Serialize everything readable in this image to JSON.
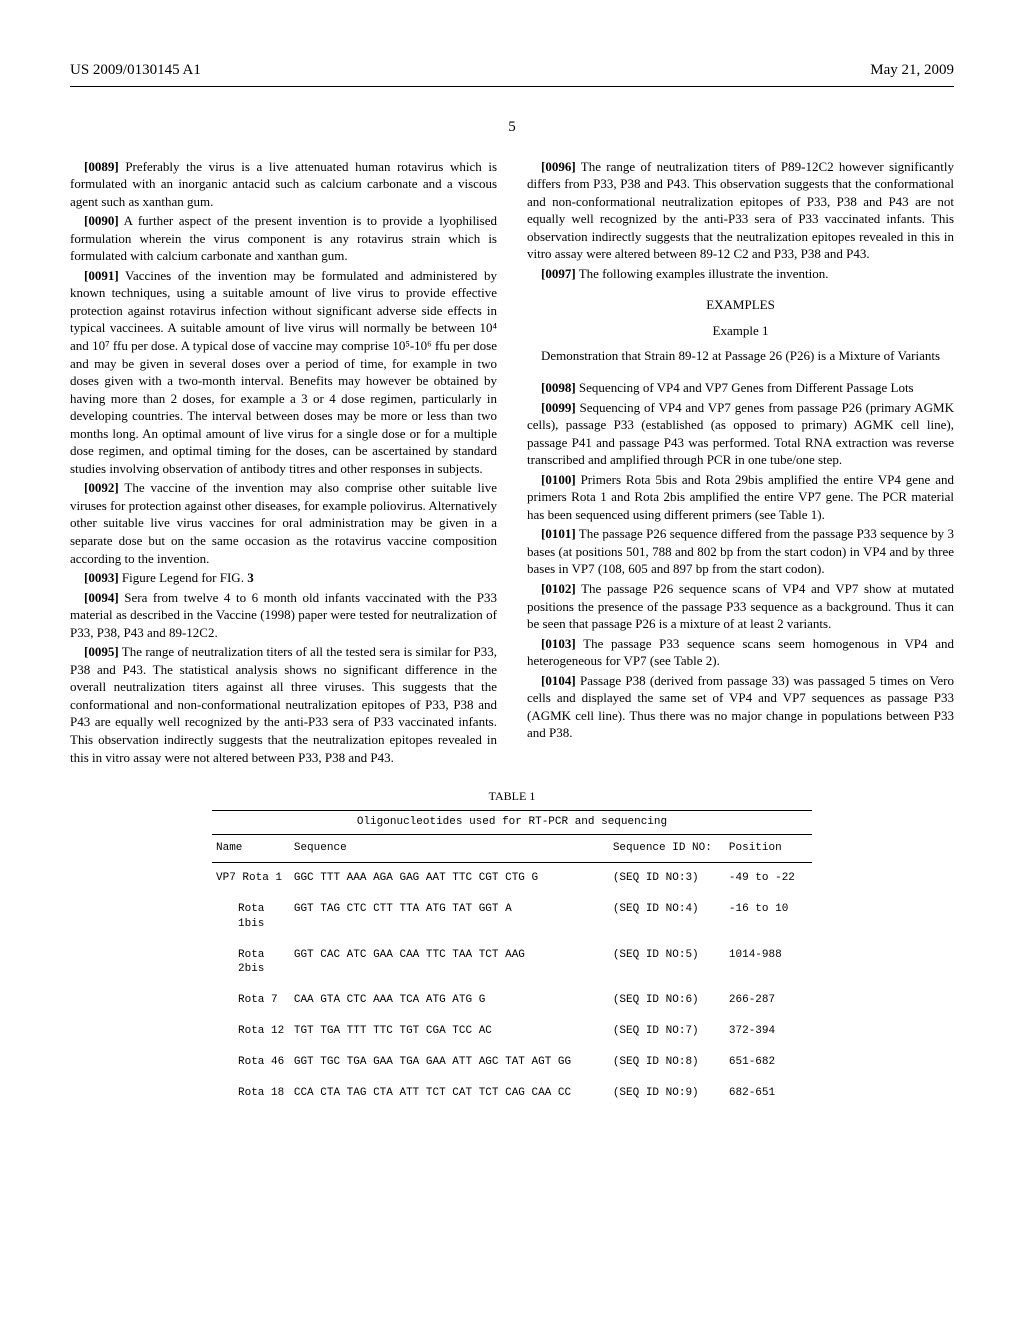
{
  "header": {
    "pub_number": "US 2009/0130145 A1",
    "pub_date": "May 21, 2009"
  },
  "page_number": "5",
  "left_col": {
    "p0089": "Preferably the virus is a live attenuated human rotavirus which is formulated with an inorganic antacid such as calcium carbonate and a viscous agent such as xanthan gum.",
    "p0090": "A further aspect of the present invention is to provide a lyophilised formulation wherein the virus component is any rotavirus strain which is formulated with calcium carbonate and xanthan gum.",
    "p0091": "Vaccines of the invention may be formulated and administered by known techniques, using a suitable amount of live virus to provide effective protection against rotavirus infection without significant adverse side effects in typical vaccinees. A suitable amount of live virus will normally be between 10⁴ and 10⁷ ffu per dose. A typical dose of vaccine may comprise 10⁵-10⁶ ffu per dose and may be given in several doses over a period of time, for example in two doses given with a two-month interval. Benefits may however be obtained by having more than 2 doses, for example a 3 or 4 dose regimen, particularly in developing countries. The interval between doses may be more or less than two months long. An optimal amount of live virus for a single dose or for a multiple dose regimen, and optimal timing for the doses, can be ascertained by standard studies involving observation of antibody titres and other responses in subjects.",
    "p0092": "The vaccine of the invention may also comprise other suitable live viruses for protection against other diseases, for example poliovirus. Alternatively other suitable live virus vaccines for oral administration may be given in a separate dose but on the same occasion as the rotavirus vaccine composition according to the invention.",
    "p0093": "Figure Legend for FIG. 3",
    "p0094": "Sera from twelve 4 to 6 month old infants vaccinated with the P33 material as described in the Vaccine (1998) paper were tested for neutralization of P33, P38, P43 and 89-12C2.",
    "p0095": "The range of neutralization titers of all the tested sera is similar for P33, P38 and P43. The statistical analysis shows no significant difference in the overall neutralization titers against all three viruses. This suggests that the conformational and non-conformational neutralization epitopes of P33, P38 and P43 are equally well recognized by the anti-P33 sera of P33 vaccinated infants. This observation indirectly suggests that the neutralization epitopes revealed in this in vitro assay were not altered between P33, P38 and P43."
  },
  "right_col": {
    "p0096": "The range of neutralization titers of P89-12C2 however significantly differs from P33, P38 and P43. This observation suggests that the conformational and non-conformational neutralization epitopes of P33, P38 and P43 are not equally well recognized by the anti-P33 sera of P33 vaccinated infants. This observation indirectly suggests that the neutralization epitopes revealed in this in vitro assay were altered between 89-12 C2 and P33, P38 and P43.",
    "p0097": "The following examples illustrate the invention.",
    "examples_heading": "EXAMPLES",
    "example1_heading": "Example 1",
    "example1_title": "Demonstration that Strain 89-12 at Passage 26 (P26) is a Mixture of Variants",
    "p0098": "Sequencing of VP4 and VP7 Genes from Different Passage Lots",
    "p0099": "Sequencing of VP4 and VP7 genes from passage P26 (primary AGMK cells), passage P33 (established (as opposed to primary) AGMK cell line), passage P41 and passage P43 was performed. Total RNA extraction was reverse transcribed and amplified through PCR in one tube/one step.",
    "p0100": "Primers Rota 5bis and Rota 29bis amplified the entire VP4 gene and primers Rota 1 and Rota 2bis amplified the entire VP7 gene. The PCR material has been sequenced using different primers (see Table 1).",
    "p0101": "The passage P26 sequence differed from the passage P33 sequence by 3 bases (at positions 501, 788 and 802 bp from the start codon) in VP4 and by three bases in VP7 (108, 605 and 897 bp from the start codon).",
    "p0102": "The passage P26 sequence scans of VP4 and VP7 show at mutated positions the presence of the passage P33 sequence as a background. Thus it can be seen that passage P26 is a mixture of at least 2 variants.",
    "p0103": "The passage P33 sequence scans seem homogenous in VP4 and heterogeneous for VP7 (see Table 2).",
    "p0104": "Passage P38 (derived from passage 33) was passaged 5 times on Vero cells and displayed the same set of VP4 and VP7 sequences as passage P33 (AGMK cell line). Thus there was no major change in populations between P33 and P38."
  },
  "table1": {
    "caption": "TABLE 1",
    "title": "Oligonucleotides used for RT-PCR and sequencing",
    "columns": [
      "Name",
      "Sequence",
      "Sequence ID NO:",
      "Position"
    ],
    "group_label": "VP7",
    "rows": [
      {
        "name": "Rota 1",
        "sequence": "GGC TTT AAA AGA GAG AAT TTC CGT CTG G",
        "seq_id": "(SEQ ID NO:3)",
        "position": "-49 to -22"
      },
      {
        "name": "Rota 1bis",
        "sequence": "GGT TAG CTC CTT TTA ATG TAT GGT A",
        "seq_id": "(SEQ ID NO:4)",
        "position": "-16 to 10"
      },
      {
        "name": "Rota 2bis",
        "sequence": "GGT CAC ATC GAA CAA TTC TAA TCT AAG",
        "seq_id": "(SEQ ID NO:5)",
        "position": "1014-988"
      },
      {
        "name": "Rota 7",
        "sequence": "CAA GTA CTC AAA TCA ATG ATG G",
        "seq_id": "(SEQ ID NO:6)",
        "position": "266-287"
      },
      {
        "name": "Rota 12",
        "sequence": "TGT TGA TTT TTC TGT CGA TCC AC",
        "seq_id": "(SEQ ID NO:7)",
        "position": "372-394"
      },
      {
        "name": "Rota 46",
        "sequence": "GGT TGC TGA GAA TGA GAA ATT AGC TAT AGT GG",
        "seq_id": "(SEQ ID NO:8)",
        "position": "651-682"
      },
      {
        "name": "Rota 18",
        "sequence": "CCA CTA TAG CTA ATT TCT CAT TCT CAG CAA CC",
        "seq_id": "(SEQ ID NO:9)",
        "position": "682-651"
      }
    ]
  }
}
